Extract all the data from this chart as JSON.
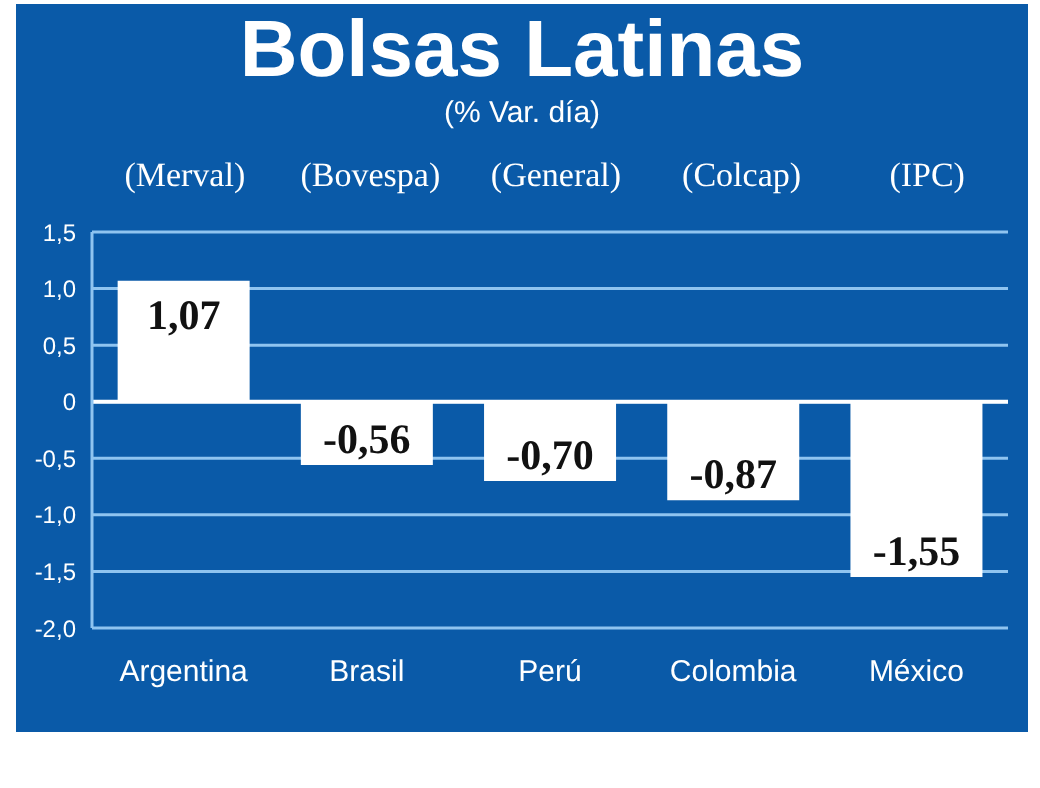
{
  "chart_data": {
    "type": "bar",
    "title": "Bolsas Latinas",
    "subtitle": "(% Var. día)",
    "annotations": [
      "(Merval)",
      "(Bovespa)",
      "(General)",
      "(Colcap)",
      "(IPC)"
    ],
    "categories": [
      "Argentina",
      "Brasil",
      "Perú",
      "Colombia",
      "México"
    ],
    "values": [
      1.07,
      -0.56,
      -0.7,
      -0.87,
      -1.55
    ],
    "value_labels": [
      "1,07",
      "-0,56",
      "-0,70",
      "-0,87",
      "-1,55"
    ],
    "color": "#ffffff",
    "ylim": [
      -2.0,
      1.5
    ],
    "yticks": [
      {
        "value": 1.5,
        "label": "1,5"
      },
      {
        "value": 1.0,
        "label": "1,0"
      },
      {
        "value": 0.5,
        "label": "0,5"
      },
      0,
      {
        "value": -0.5,
        "label": "-0,5"
      },
      {
        "value": -1.0,
        "label": "-1,0"
      },
      {
        "value": -1.5,
        "label": "-1,5"
      },
      {
        "value": -2.0,
        "label": "-2,0"
      }
    ],
    "grid": "y"
  }
}
